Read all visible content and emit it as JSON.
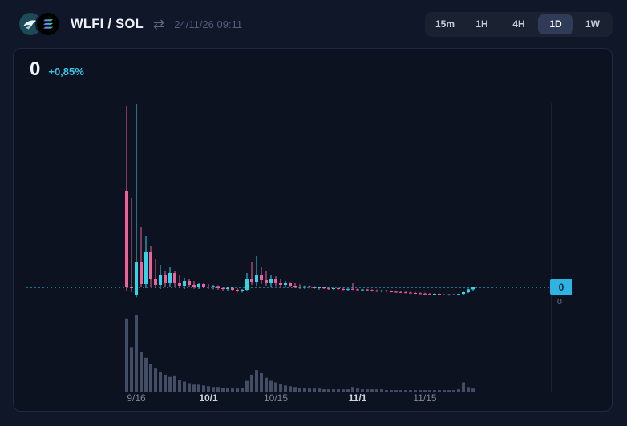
{
  "header": {
    "pair": "WLFI / SOL",
    "timestamp": "24/11/26 09:11",
    "timeframes": [
      {
        "label": "15m",
        "active": false
      },
      {
        "label": "1H",
        "active": false
      },
      {
        "label": "4H",
        "active": false
      },
      {
        "label": "1D",
        "active": true
      },
      {
        "label": "1W",
        "active": false
      }
    ]
  },
  "icons": [
    {
      "name": "wlfi-eagle-logo"
    },
    {
      "name": "solana-logo"
    },
    {
      "name": "swap-icon",
      "glyph": "⇄"
    }
  ],
  "chart_header": {
    "price": "0",
    "change": "+0,85%"
  },
  "price_axis": {
    "current_price_label": "0",
    "baseline_label": "0"
  },
  "colors": {
    "up": "#2fd6e8",
    "down": "#f2609c",
    "accent": "#2fb3e2",
    "volume": "#434e66",
    "axis_line": "#232e47",
    "label_dim": "#7d8698",
    "label_strong": "#ccd4e2"
  },
  "chart_data": {
    "type": "candlestick",
    "units": "relative (price axis rounds to 0)",
    "ylim": [
      0,
      12.5
    ],
    "current_price": 1.0,
    "x_labels": [
      {
        "label": "9/16",
        "index": 2,
        "strong": false
      },
      {
        "label": "10/1",
        "index": 17,
        "strong": true
      },
      {
        "label": "10/15",
        "index": 31,
        "strong": false
      },
      {
        "label": "11/1",
        "index": 48,
        "strong": true
      },
      {
        "label": "11/15",
        "index": 62,
        "strong": false
      }
    ],
    "candles": [
      [
        7.0,
        12.35,
        0.8,
        1.05
      ],
      [
        1.05,
        6.6,
        0.7,
        0.95
      ],
      [
        0.5,
        12.45,
        0.38,
        2.6
      ],
      [
        2.6,
        4.8,
        1.0,
        1.2
      ],
      [
        1.2,
        4.2,
        0.95,
        3.2
      ],
      [
        3.2,
        3.6,
        1.05,
        1.5
      ],
      [
        1.5,
        2.8,
        0.95,
        1.15
      ],
      [
        1.15,
        2.4,
        0.9,
        1.8
      ],
      [
        1.8,
        2.0,
        1.0,
        1.25
      ],
      [
        1.25,
        2.3,
        1.0,
        1.9
      ],
      [
        1.9,
        2.05,
        1.05,
        1.3
      ],
      [
        1.3,
        1.75,
        0.95,
        1.1
      ],
      [
        1.1,
        1.6,
        0.9,
        1.4
      ],
      [
        1.4,
        1.5,
        1.0,
        1.15
      ],
      [
        1.15,
        1.4,
        0.92,
        1.05
      ],
      [
        1.05,
        1.3,
        0.9,
        1.2
      ],
      [
        1.2,
        1.28,
        0.95,
        1.05
      ],
      [
        1.05,
        1.2,
        0.9,
        1.0
      ],
      [
        1.0,
        1.15,
        0.88,
        1.08
      ],
      [
        1.08,
        1.12,
        0.85,
        0.95
      ],
      [
        0.95,
        1.05,
        0.8,
        0.9
      ],
      [
        0.9,
        1.02,
        0.8,
        0.97
      ],
      [
        0.97,
        1.0,
        0.75,
        0.85
      ],
      [
        0.85,
        0.95,
        0.68,
        0.78
      ],
      [
        0.78,
        0.9,
        0.68,
        0.85
      ],
      [
        0.85,
        1.9,
        0.78,
        1.55
      ],
      [
        1.55,
        2.6,
        1.15,
        1.35
      ],
      [
        1.35,
        2.95,
        1.1,
        1.8
      ],
      [
        1.8,
        2.3,
        1.2,
        1.45
      ],
      [
        1.45,
        2.0,
        1.1,
        1.3
      ],
      [
        1.3,
        1.8,
        1.05,
        1.5
      ],
      [
        1.5,
        1.7,
        1.08,
        1.25
      ],
      [
        1.25,
        1.5,
        1.0,
        1.15
      ],
      [
        1.15,
        1.4,
        0.98,
        1.28
      ],
      [
        1.28,
        1.33,
        1.0,
        1.1
      ],
      [
        1.1,
        1.25,
        0.95,
        1.05
      ],
      [
        1.05,
        1.18,
        0.9,
        0.98
      ],
      [
        0.98,
        1.12,
        0.9,
        1.07
      ],
      [
        1.07,
        1.12,
        0.94,
        1.0
      ],
      [
        1.0,
        1.08,
        0.9,
        0.95
      ],
      [
        0.95,
        1.03,
        0.86,
        1.0
      ],
      [
        1.0,
        1.04,
        0.9,
        0.94
      ],
      [
        0.94,
        1.0,
        0.85,
        0.9
      ],
      [
        0.9,
        0.99,
        0.84,
        0.95
      ],
      [
        0.95,
        0.99,
        0.85,
        0.9
      ],
      [
        0.9,
        0.97,
        0.82,
        0.87
      ],
      [
        0.87,
        0.94,
        0.8,
        0.91
      ],
      [
        0.91,
        1.3,
        0.84,
        0.88
      ],
      [
        0.88,
        0.94,
        0.79,
        0.84
      ],
      [
        0.84,
        0.91,
        0.77,
        0.87
      ],
      [
        0.87,
        0.91,
        0.79,
        0.83
      ],
      [
        0.83,
        0.89,
        0.74,
        0.79
      ],
      [
        0.79,
        0.87,
        0.71,
        0.77
      ],
      [
        0.77,
        0.84,
        0.69,
        0.81
      ],
      [
        0.81,
        0.84,
        0.71,
        0.75
      ],
      [
        0.75,
        0.81,
        0.69,
        0.73
      ],
      [
        0.73,
        0.79,
        0.67,
        0.71
      ],
      [
        0.71,
        0.77,
        0.65,
        0.69
      ],
      [
        0.69,
        0.75,
        0.63,
        0.67
      ],
      [
        0.67,
        0.73,
        0.61,
        0.65
      ],
      [
        0.65,
        0.71,
        0.59,
        0.63
      ],
      [
        0.63,
        0.69,
        0.57,
        0.61
      ],
      [
        0.61,
        0.67,
        0.55,
        0.59
      ],
      [
        0.59,
        0.65,
        0.54,
        0.57
      ],
      [
        0.57,
        0.63,
        0.53,
        0.6
      ],
      [
        0.6,
        0.62,
        0.52,
        0.55
      ],
      [
        0.55,
        0.59,
        0.5,
        0.53
      ],
      [
        0.53,
        0.59,
        0.49,
        0.56
      ],
      [
        0.56,
        0.59,
        0.51,
        0.54
      ],
      [
        0.54,
        0.61,
        0.51,
        0.59
      ],
      [
        0.59,
        0.74,
        0.54,
        0.7
      ],
      [
        0.7,
        0.93,
        0.64,
        0.88
      ],
      [
        0.88,
        1.04,
        0.78,
        1.0
      ]
    ],
    "volumes": [
      95,
      58,
      100,
      52,
      44,
      36,
      30,
      26,
      22,
      19,
      21,
      15,
      13,
      11,
      9,
      9,
      8,
      7,
      6,
      6,
      5,
      5,
      4,
      4,
      5,
      14,
      22,
      28,
      24,
      18,
      14,
      12,
      10,
      8,
      7,
      6,
      5,
      5,
      4,
      4,
      4,
      3,
      3,
      3,
      3,
      3,
      3,
      6,
      4,
      3,
      3,
      3,
      3,
      3,
      2,
      2,
      2,
      2,
      2,
      2,
      2,
      2,
      2,
      2,
      2,
      2,
      2,
      2,
      2,
      3,
      12,
      6,
      4
    ]
  }
}
